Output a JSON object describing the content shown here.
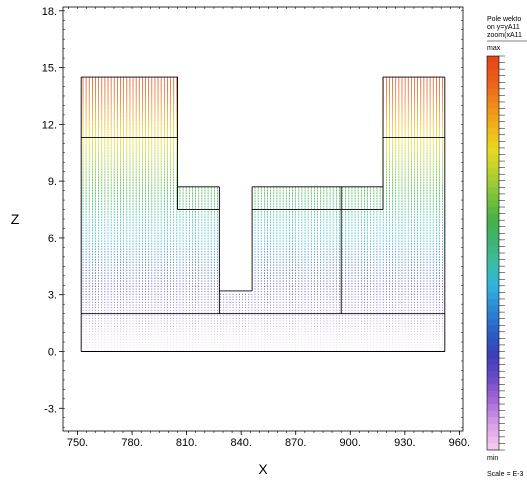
{
  "chart_data": {
    "type": "quiver",
    "xlabel": "X",
    "ylabel": "Z",
    "xlim": [
      742,
      962
    ],
    "ylim": [
      -4.2,
      18.2
    ],
    "xticks": [
      {
        "value": 750,
        "label": "750."
      },
      {
        "value": 780,
        "label": "780."
      },
      {
        "value": 810,
        "label": "810."
      },
      {
        "value": 840,
        "label": "840."
      },
      {
        "value": 870,
        "label": "870."
      },
      {
        "value": 900,
        "label": "900."
      },
      {
        "value": 930,
        "label": "930."
      },
      {
        "value": 960,
        "label": "960."
      }
    ],
    "yticks": [
      {
        "value": -3,
        "label": "-3."
      },
      {
        "value": 0,
        "label": "0."
      },
      {
        "value": 3,
        "label": "3."
      },
      {
        "value": 6,
        "label": "6."
      },
      {
        "value": 9,
        "label": "9."
      },
      {
        "value": 12,
        "label": "12."
      },
      {
        "value": 15,
        "label": "15."
      },
      {
        "value": 18,
        "label": "18."
      }
    ],
    "field_region": {
      "x_range": [
        752,
        952
      ],
      "y_bottom": 0,
      "y_top_profile": [
        [
          752,
          14.5
        ],
        [
          805,
          14.5
        ],
        [
          805,
          8.7
        ],
        [
          828,
          8.7
        ],
        [
          828,
          3.2
        ],
        [
          846,
          3.2
        ],
        [
          846,
          8.7
        ],
        [
          918,
          8.7
        ],
        [
          918,
          14.5
        ],
        [
          952,
          14.5
        ]
      ],
      "value_low_at": 0,
      "value_high_at": 14.5
    },
    "legend": {
      "title_lines": [
        "Pole wekto",
        "on y=yA11",
        "zoom(xA11"
      ],
      "max_label": "max",
      "min_label": "min",
      "scale_label": "Scale = E-3"
    },
    "colormap": [
      "#f4c7ec",
      "#d79be8",
      "#a46bd6",
      "#6a4bc8",
      "#3b3fb9",
      "#2a5fc4",
      "#2b86d2",
      "#2fb3df",
      "#39bfa8",
      "#3cb372",
      "#46b044",
      "#7cc23a",
      "#b5d12e",
      "#e6da1f",
      "#f2b419",
      "#ef8a17",
      "#ec6019",
      "#e84518"
    ]
  }
}
